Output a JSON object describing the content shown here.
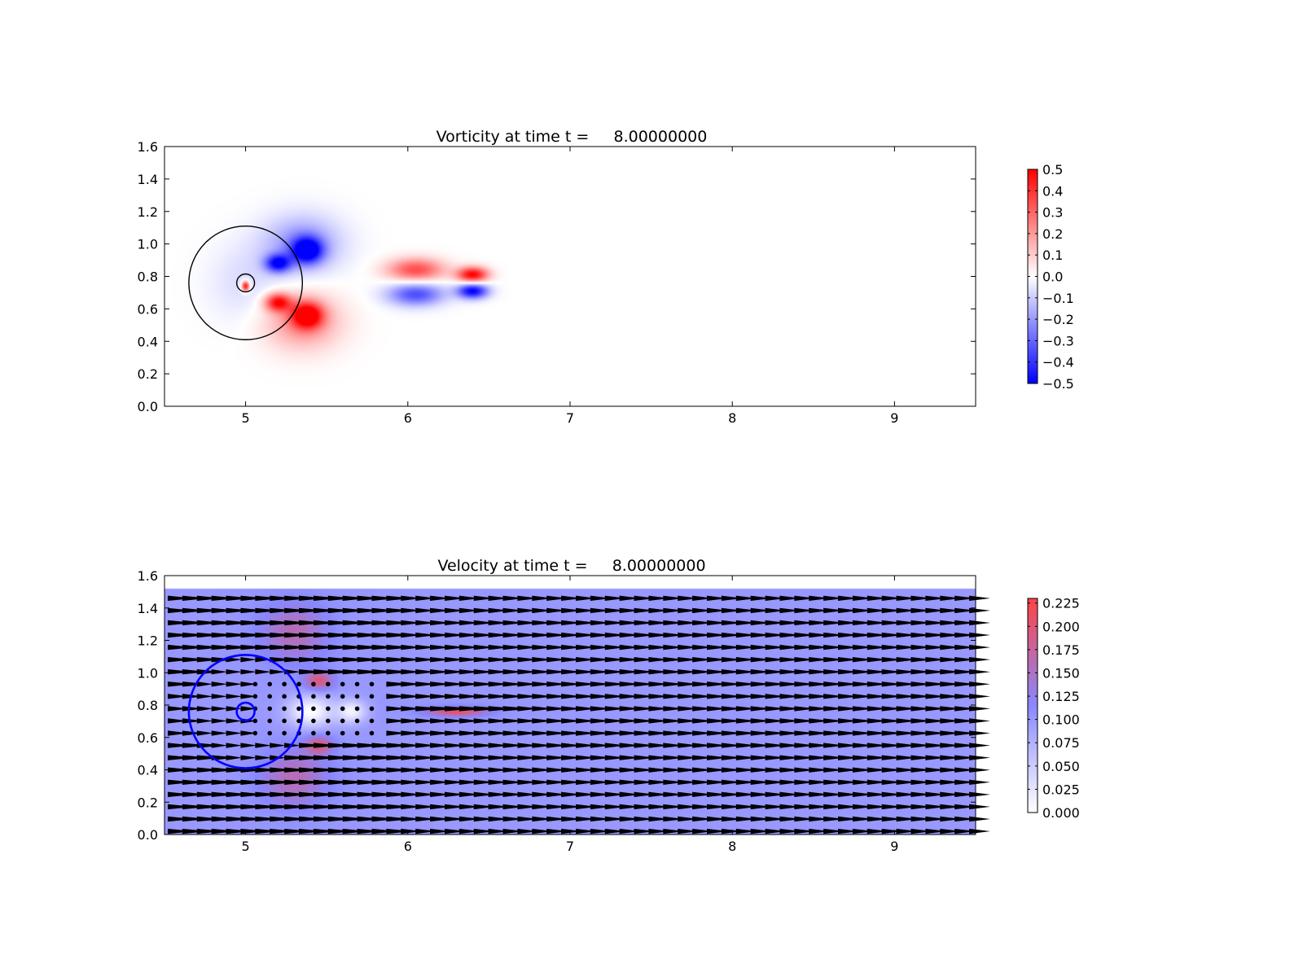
{
  "chart_data": [
    {
      "type": "heatmap",
      "title": "Vorticity at time t =     8.00000000",
      "xlabel": "",
      "ylabel": "",
      "xlim": [
        4.5,
        9.5
      ],
      "ylim": [
        0.0,
        1.6
      ],
      "xticks": [
        5,
        6,
        7,
        8,
        9
      ],
      "yticks": [
        0.0,
        0.2,
        0.4,
        0.6,
        0.8,
        1.0,
        1.2,
        1.4,
        1.6
      ],
      "colormap": [
        "#0000ff",
        "#ffffff",
        "#ff0000"
      ],
      "colorbar": {
        "vmin": -0.5,
        "vmax": 0.5,
        "ticks": [
          -0.5,
          -0.4,
          -0.3,
          -0.2,
          -0.1,
          0.0,
          0.1,
          0.2,
          0.3,
          0.4,
          0.5
        ],
        "tick_labels": [
          "−0.5",
          "−0.4",
          "−0.3",
          "−0.2",
          "−0.1",
          "0.0",
          "0.1",
          "0.2",
          "0.3",
          "0.4",
          "0.5"
        ]
      },
      "circles": [
        {
          "cx": 5.0,
          "cy": 0.76,
          "r": 0.35,
          "color": "#000000"
        },
        {
          "cx": 5.0,
          "cy": 0.76,
          "r": 0.055,
          "color": "#000000"
        }
      ],
      "features": [
        {
          "x": 5.38,
          "y": 0.96,
          "sx": 0.12,
          "sy": 0.1,
          "value": -0.5
        },
        {
          "x": 5.38,
          "y": 0.56,
          "sx": 0.12,
          "sy": 0.1,
          "value": 0.5
        },
        {
          "x": 5.2,
          "y": 0.88,
          "sx": 0.1,
          "sy": 0.07,
          "value": -0.45
        },
        {
          "x": 5.2,
          "y": 0.64,
          "sx": 0.1,
          "sy": 0.07,
          "value": 0.45
        },
        {
          "x": 5.35,
          "y": 1.0,
          "sx": 0.3,
          "sy": 0.22,
          "value": -0.22
        },
        {
          "x": 5.35,
          "y": 0.52,
          "sx": 0.3,
          "sy": 0.22,
          "value": 0.22
        },
        {
          "x": 5.0,
          "y": 0.76,
          "sx": 0.28,
          "sy": 0.3,
          "value": -0.07
        },
        {
          "x": 5.0,
          "y": 0.74,
          "sx": 0.03,
          "sy": 0.04,
          "value": 0.5
        },
        {
          "x": 6.05,
          "y": 0.84,
          "sx": 0.22,
          "sy": 0.09,
          "value": 0.35
        },
        {
          "x": 6.4,
          "y": 0.81,
          "sx": 0.12,
          "sy": 0.06,
          "value": 0.5
        },
        {
          "x": 6.05,
          "y": 0.69,
          "sx": 0.22,
          "sy": 0.09,
          "value": -0.35
        },
        {
          "x": 6.4,
          "y": 0.71,
          "sx": 0.12,
          "sy": 0.06,
          "value": -0.5
        }
      ]
    },
    {
      "type": "heatmap",
      "subtype": "quiver",
      "title": "Velocity at time t =     8.00000000",
      "xlabel": "",
      "ylabel": "",
      "xlim": [
        4.5,
        9.5
      ],
      "ylim": [
        0.0,
        1.6
      ],
      "xticks": [
        5,
        6,
        7,
        8,
        9
      ],
      "yticks": [
        0.0,
        0.2,
        0.4,
        0.6,
        0.8,
        1.0,
        1.2,
        1.4,
        1.6
      ],
      "field_ylim": [
        0.0,
        1.52
      ],
      "background_value": 0.1,
      "colormap": [
        "#ffffff",
        "#8888ff",
        "#ff4444"
      ],
      "colorbar": {
        "vmin": 0.0,
        "vmax": 0.23,
        "ticks": [
          0.0,
          0.025,
          0.05,
          0.075,
          0.1,
          0.125,
          0.15,
          0.175,
          0.2,
          0.225
        ],
        "tick_labels": [
          "0.000",
          "0.025",
          "0.050",
          "0.075",
          "0.100",
          "0.125",
          "0.150",
          "0.175",
          "0.200",
          "0.225"
        ]
      },
      "circles": [
        {
          "cx": 5.0,
          "cy": 0.76,
          "r": 0.35,
          "color": "#0000ff"
        },
        {
          "cx": 5.0,
          "cy": 0.76,
          "r": 0.055,
          "color": "#0000ff"
        }
      ],
      "features": [
        {
          "x": 5.3,
          "y": 1.25,
          "sx": 0.25,
          "sy": 0.22,
          "value": 0.16
        },
        {
          "x": 5.3,
          "y": 0.35,
          "sx": 0.25,
          "sy": 0.22,
          "value": 0.16
        },
        {
          "x": 5.45,
          "y": 0.95,
          "sx": 0.1,
          "sy": 0.07,
          "value": 0.2
        },
        {
          "x": 5.45,
          "y": 0.55,
          "sx": 0.1,
          "sy": 0.07,
          "value": 0.2
        },
        {
          "x": 5.4,
          "y": 0.76,
          "sx": 0.18,
          "sy": 0.12,
          "value": 0.0
        },
        {
          "x": 5.65,
          "y": 0.76,
          "sx": 0.12,
          "sy": 0.09,
          "value": 0.01
        },
        {
          "x": 6.3,
          "y": 0.76,
          "sx": 0.22,
          "sy": 0.035,
          "value": 0.21
        }
      ],
      "quiver": {
        "x_start": 4.52,
        "x_end": 9.46,
        "nx": 56,
        "y_start": 0.02,
        "y_end": 1.46,
        "ny": 20,
        "color": "#000000"
      }
    }
  ]
}
